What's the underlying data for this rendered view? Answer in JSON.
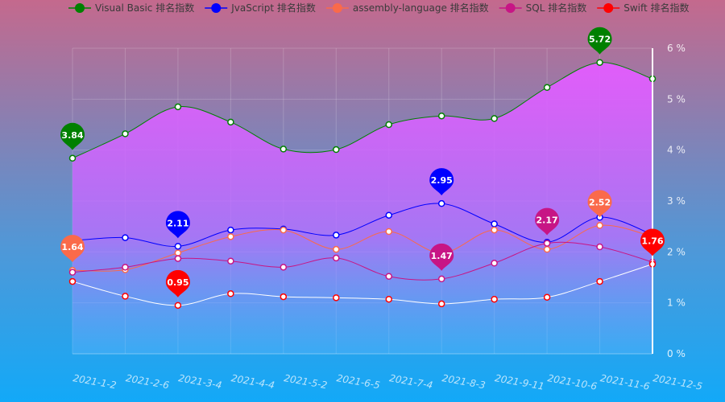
{
  "chart_data": {
    "type": "line",
    "title": "",
    "xlabel": "",
    "ylabel": "",
    "ylim": [
      0,
      6
    ],
    "y_ticks": [
      "0 %",
      "1 %",
      "2 %",
      "3 %",
      "4 %",
      "5 %",
      "6 %"
    ],
    "grid": true,
    "legend_position": "top",
    "categories": [
      "2021-1-2",
      "2021-2-6",
      "2021-3-4",
      "2021-4-4",
      "2021-5-2",
      "2021-6-5",
      "2021-7-4",
      "2021-8-3",
      "2021-9-11",
      "2021-10-6",
      "2021-11-6",
      "2021-12-5"
    ],
    "series": [
      {
        "name": "Visual Basic 排名指数",
        "color": "#008000",
        "values": [
          3.84,
          4.32,
          4.85,
          4.55,
          4.02,
          4.01,
          4.5,
          4.67,
          4.62,
          5.23,
          5.72,
          5.4
        ],
        "markers": [
          {
            "index": 0,
            "label": "3.84"
          },
          {
            "index": 10,
            "label": "5.72"
          }
        ]
      },
      {
        "name": "JvaScript 排名指数",
        "color": "#0000ff",
        "values": [
          2.22,
          2.28,
          2.11,
          2.43,
          2.45,
          2.33,
          2.72,
          2.95,
          2.55,
          2.19,
          2.68,
          2.34
        ],
        "markers": [
          {
            "index": 2,
            "label": "2.11"
          },
          {
            "index": 7,
            "label": "2.95"
          }
        ]
      },
      {
        "name": "assembly-language 排名指数",
        "color": "#fa6a4a",
        "values": [
          1.64,
          1.65,
          1.98,
          2.3,
          2.43,
          2.05,
          2.4,
          1.98,
          2.43,
          2.05,
          2.52,
          2.3
        ],
        "markers": [
          {
            "index": 0,
            "label": "1.64"
          },
          {
            "index": 10,
            "label": "2.52"
          }
        ]
      },
      {
        "name": "SQL 排名指数",
        "color": "#c71585",
        "values": [
          1.6,
          1.7,
          1.87,
          1.82,
          1.7,
          1.88,
          1.52,
          1.47,
          1.78,
          2.17,
          2.1,
          1.8
        ],
        "markers": [
          {
            "index": 7,
            "label": "1.47"
          },
          {
            "index": 9,
            "label": "2.17"
          }
        ]
      },
      {
        "name": "Swift 排名指数",
        "color": "#ff0000",
        "values": [
          1.42,
          1.13,
          0.95,
          1.18,
          1.12,
          1.1,
          1.07,
          0.98,
          1.07,
          1.11,
          1.42,
          1.76
        ],
        "markers": [
          {
            "index": 2,
            "label": "0.95"
          },
          {
            "index": 11,
            "label": "1.76"
          }
        ]
      }
    ]
  }
}
